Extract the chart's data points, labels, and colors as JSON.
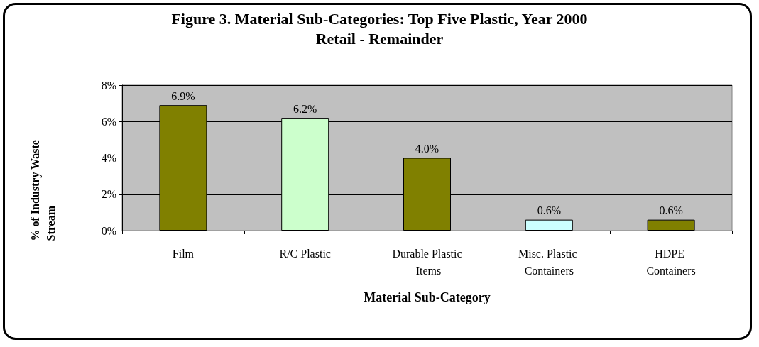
{
  "chart_data": {
    "type": "bar",
    "title": "Figure 3. Material Sub-Categories: Top Five Plastic, Year 2000",
    "subtitle": "Retail - Remainder",
    "xlabel": "Material Sub-Category",
    "ylabel": "% of Industry Waste Stream",
    "categories": [
      "Film",
      "R/C Plastic",
      "Durable Plastic Items",
      "Misc. Plastic Containers",
      "HDPE Containers"
    ],
    "values": [
      6.9,
      6.2,
      4.0,
      0.6,
      0.6
    ],
    "colors": [
      "#808000",
      "#ccffcc",
      "#808000",
      "#ccffff",
      "#808000"
    ],
    "value_labels": [
      "6.9%",
      "6.2%",
      "4.0%",
      "0.6%",
      "0.6%"
    ],
    "ylim": [
      0,
      8
    ],
    "yticks": [
      {
        "value": 0,
        "label": "0%"
      },
      {
        "value": 2,
        "label": "2%"
      },
      {
        "value": 4,
        "label": "4%"
      },
      {
        "value": 6,
        "label": "6%"
      },
      {
        "value": 8,
        "label": "8%"
      }
    ],
    "grid": "y"
  }
}
